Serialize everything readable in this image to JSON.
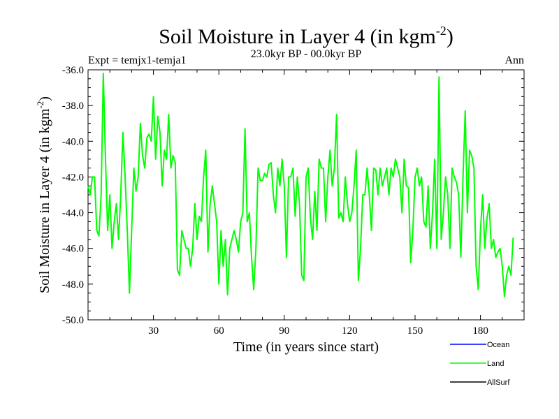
{
  "chart_data": {
    "type": "line",
    "title": "Soil Moisture in Layer 4 (in kgm",
    "title_exp": "-2",
    "title_close": ")",
    "subtitle": "23.0kyr BP - 00.0kyr BP",
    "left_label": "Expt = temjx1-temja1",
    "right_label": "Ann",
    "xlabel": "Time (in years since start)",
    "ylabel": "Soil Moisture in Layer 4 (in kgm",
    "ylabel_exp": "-2",
    "ylabel_close": ")",
    "xlim": [
      0,
      200
    ],
    "ylim": [
      -50.0,
      -36.0
    ],
    "xticks": [
      30,
      60,
      90,
      120,
      150,
      180
    ],
    "xtick_labels": [
      "30",
      "60",
      "90",
      "120",
      "150",
      "180"
    ],
    "yticks": [
      -50.0,
      -48.0,
      -46.0,
      -44.0,
      -42.0,
      -40.0,
      -38.0,
      -36.0
    ],
    "ytick_labels": [
      "-50.0",
      "-48.0",
      "-46.0",
      "-44.0",
      "-42.0",
      "-40.0",
      "-38.0",
      "-36.0"
    ],
    "legend": [
      {
        "name": "Ocean",
        "color": "#0000ff"
      },
      {
        "name": "Land",
        "color": "#00ff00"
      },
      {
        "name": "AllSurf",
        "color": "#000000"
      }
    ],
    "series": [
      {
        "name": "Land",
        "color": "#00ff00",
        "x_start": 0,
        "x_step": 1,
        "values": [
          -42.5,
          -43.0,
          -42.0,
          -42.0,
          -45.0,
          -45.3,
          -43.0,
          -36.2,
          -41.0,
          -45.0,
          -43.0,
          -46.0,
          -44.5,
          -43.5,
          -45.5,
          -43.0,
          -39.5,
          -42.0,
          -45.0,
          -48.5,
          -45.0,
          -41.5,
          -42.8,
          -42.0,
          -39.0,
          -40.8,
          -41.5,
          -39.8,
          -39.6,
          -40.0,
          -37.5,
          -41.0,
          -38.6,
          -39.5,
          -42.5,
          -40.5,
          -41.0,
          -38.5,
          -41.5,
          -40.8,
          -41.2,
          -47.2,
          -47.5,
          -45.0,
          -45.5,
          -46.0,
          -46.0,
          -47.0,
          -46.0,
          -43.5,
          -45.5,
          -44.2,
          -44.5,
          -42.0,
          -40.5,
          -46.2,
          -43.5,
          -42.5,
          -43.5,
          -44.5,
          -48.0,
          -45.0,
          -47.0,
          -45.5,
          -48.6,
          -46.0,
          -45.5,
          -45.0,
          -45.5,
          -46.2,
          -44.5,
          -44.0,
          -39.3,
          -44.5,
          -44.0,
          -46.5,
          -48.3,
          -46.0,
          -41.5,
          -42.2,
          -42.2,
          -41.8,
          -42.0,
          -41.3,
          -41.2,
          -43.0,
          -44.0,
          -41.5,
          -42.5,
          -41.0,
          -42.5,
          -46.5,
          -42.0,
          -42.0,
          -41.5,
          -44.2,
          -42.0,
          -43.5,
          -47.5,
          -47.8,
          -42.0,
          -41.5,
          -44.3,
          -45.5,
          -42.8,
          -45.0,
          -41.0,
          -41.5,
          -41.5,
          -44.5,
          -42.0,
          -40.5,
          -42.5,
          -41.5,
          -38.5,
          -44.3,
          -44.0,
          -44.5,
          -42.0,
          -43.5,
          -44.5,
          -44.0,
          -42.5,
          -40.5,
          -47.8,
          -46.0,
          -43.0,
          -43.0,
          -41.5,
          -43.0,
          -45.0,
          -41.5,
          -41.6,
          -43.0,
          -41.5,
          -42.5,
          -42.0,
          -41.5,
          -43.0,
          -41.5,
          -42.0,
          -41.0,
          -41.5,
          -42.0,
          -44.0,
          -41.0,
          -42.5,
          -42.6,
          -46.8,
          -45.0,
          -42.0,
          -41.5,
          -42.5,
          -42.0,
          -44.5,
          -44.8,
          -42.5,
          -46.0,
          -44.0,
          -41.0,
          -46.0,
          -36.4,
          -45.5,
          -44.0,
          -42.0,
          -43.0,
          -46.0,
          -41.5,
          -42.0,
          -42.3,
          -43.0,
          -46.5,
          -42.0,
          -38.3,
          -44.0,
          -40.5,
          -40.8,
          -41.5,
          -47.0,
          -48.3,
          -45.0,
          -43.0,
          -46.0,
          -44.3,
          -43.5,
          -46.0,
          -45.5,
          -46.5,
          -46.2,
          -46.0,
          -47.0,
          -48.7,
          -47.5,
          -47.0,
          -47.5,
          -45.4
        ]
      }
    ]
  }
}
